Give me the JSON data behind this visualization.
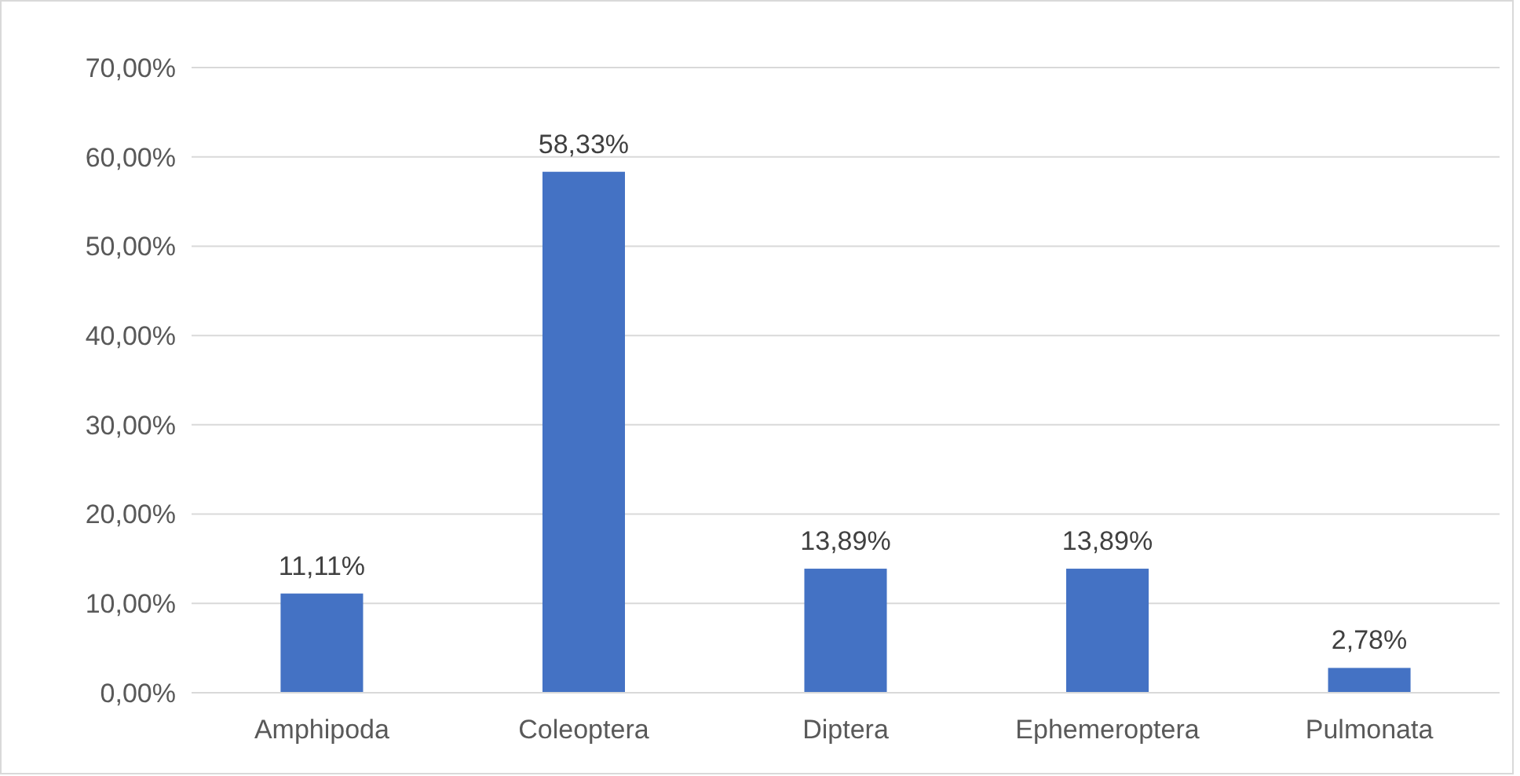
{
  "chart_data": {
    "type": "bar",
    "categories": [
      "Amphipoda",
      "Coleoptera",
      "Diptera",
      "Ephemeroptera",
      "Pulmonata"
    ],
    "values": [
      11.11,
      58.33,
      13.89,
      13.89,
      2.78
    ],
    "value_labels": [
      "11,11%",
      "58,33%",
      "13,89%",
      "13,89%",
      "2,78%"
    ],
    "color": "#4472c4",
    "ylim": [
      0,
      70
    ],
    "yticks": [
      {
        "value": 0,
        "label": "0,00%"
      },
      {
        "value": 10,
        "label": "10,00%"
      },
      {
        "value": 20,
        "label": "20,00%"
      },
      {
        "value": 30,
        "label": "30,00%"
      },
      {
        "value": 40,
        "label": "40,00%"
      },
      {
        "value": 50,
        "label": "50,00%"
      },
      {
        "value": 60,
        "label": "60,00%"
      },
      {
        "value": 70,
        "label": "70,00%"
      }
    ],
    "grid": "y"
  }
}
